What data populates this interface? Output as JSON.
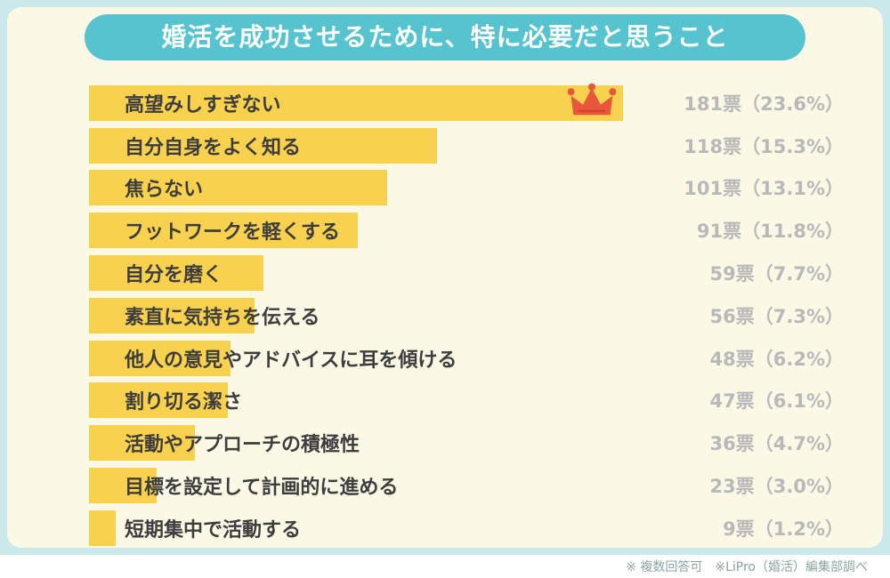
{
  "header": {
    "title": "婚活を成功させるために、特に必要だと思うこと"
  },
  "footer": {
    "note": "※ 複数回答可　※LiPro（婚活）編集部調べ"
  },
  "colors": {
    "frame": "#cbe8ea",
    "panel": "#fcf8e6",
    "header_bg": "#56c3ce",
    "bar": "#f8d14f",
    "label_text": "#3d3d3d",
    "value_text": "#b9b9b9",
    "crown": "#e8573c"
  },
  "chart_data": {
    "type": "bar",
    "orientation": "horizontal",
    "title": "婚活を成功させるために、特に必要だと思うこと",
    "unit": "票",
    "max_value": 181,
    "legend": "none",
    "items": [
      {
        "label": "高望みしすぎない",
        "votes": 181,
        "percent": 23.6,
        "value_label": "181票（23.6%）",
        "crown": true
      },
      {
        "label": "自分自身をよく知る",
        "votes": 118,
        "percent": 15.3,
        "value_label": "118票（15.3%）",
        "crown": false
      },
      {
        "label": "焦らない",
        "votes": 101,
        "percent": 13.1,
        "value_label": "101票（13.1%）",
        "crown": false
      },
      {
        "label": "フットワークを軽くする",
        "votes": 91,
        "percent": 11.8,
        "value_label": "91票（11.8%）",
        "crown": false
      },
      {
        "label": "自分を磨く",
        "votes": 59,
        "percent": 7.7,
        "value_label": "59票（7.7%）",
        "crown": false
      },
      {
        "label": "素直に気持ちを伝える",
        "votes": 56,
        "percent": 7.3,
        "value_label": "56票（7.3%）",
        "crown": false
      },
      {
        "label": "他人の意見やアドバイスに耳を傾ける",
        "votes": 48,
        "percent": 6.2,
        "value_label": "48票（6.2%）",
        "crown": false
      },
      {
        "label": "割り切る潔さ",
        "votes": 47,
        "percent": 6.1,
        "value_label": "47票（6.1%）",
        "crown": false
      },
      {
        "label": "活動やアプローチの積極性",
        "votes": 36,
        "percent": 4.7,
        "value_label": "36票（4.7%）",
        "crown": false
      },
      {
        "label": "目標を設定して計画的に進める",
        "votes": 23,
        "percent": 3.0,
        "value_label": "23票（3.0%）",
        "crown": false
      },
      {
        "label": "短期集中で活動する",
        "votes": 9,
        "percent": 1.2,
        "value_label": "9票（1.2%）",
        "crown": false
      }
    ]
  }
}
